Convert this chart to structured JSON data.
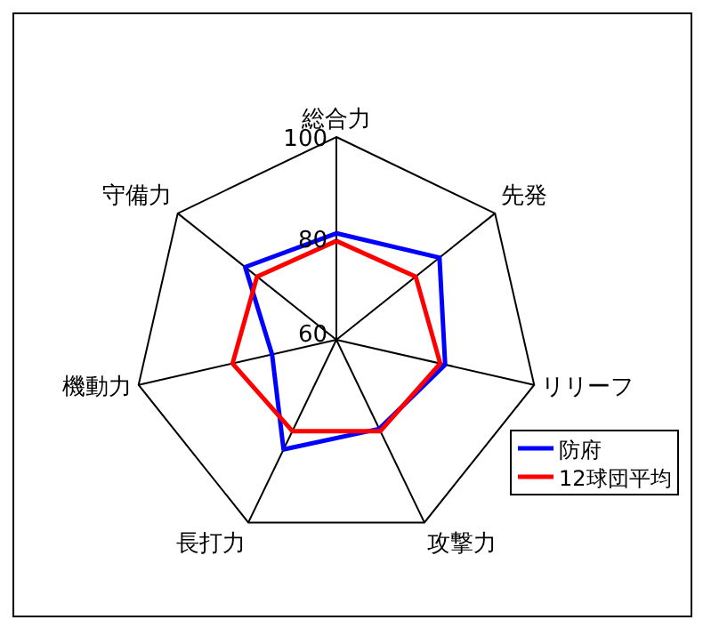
{
  "chart_data": {
    "type": "radar",
    "categories": [
      "総合力",
      "先発",
      "リリーフ",
      "攻撃力",
      "長打力",
      "機動力",
      "守備力"
    ],
    "series": [
      {
        "name": "防府",
        "color": "#0000ff",
        "values": [
          81,
          86,
          82,
          79.5,
          84,
          73,
          83
        ]
      },
      {
        "name": "12球団平均",
        "color": "#ff0000",
        "values": [
          79.5,
          80,
          81,
          80,
          80,
          81,
          80
        ]
      }
    ],
    "ylim": [
      60,
      100
    ],
    "yticks": [
      60,
      80,
      100
    ],
    "legend": "bottom right",
    "grid": false
  }
}
